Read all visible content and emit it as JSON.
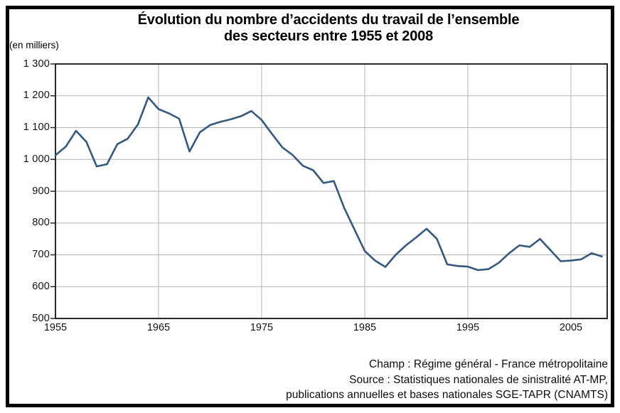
{
  "title": {
    "line1": "Évolution du nombre d’accidents du travail de l’ensemble",
    "line2": "des secteurs entre 1955 et 2008"
  },
  "y_axis": {
    "unit": "(en milliers)",
    "ticks": [
      {
        "value": 1300,
        "label": "1 300"
      },
      {
        "value": 1200,
        "label": "1 200"
      },
      {
        "value": 1100,
        "label": "1 100"
      },
      {
        "value": 1000,
        "label": "1 000"
      },
      {
        "value": 900,
        "label": "900"
      },
      {
        "value": 800,
        "label": "800"
      },
      {
        "value": 700,
        "label": "700"
      },
      {
        "value": 600,
        "label": "600"
      },
      {
        "value": 500,
        "label": "500"
      }
    ]
  },
  "x_axis": {
    "ticks": [
      {
        "value": 1955,
        "label": "1955"
      },
      {
        "value": 1965,
        "label": "1965"
      },
      {
        "value": 1975,
        "label": "1975"
      },
      {
        "value": 1985,
        "label": "1985"
      },
      {
        "value": 1995,
        "label": "1995"
      },
      {
        "value": 2005,
        "label": "2005"
      }
    ]
  },
  "footer": {
    "line1": "Champ : Régime général - France métropolitaine",
    "line2": "Source : Statistiques nationales de sinistralité AT-MP,",
    "line3": "publications annuelles et bases nationales SGE-TAPR (CNAMTS)"
  },
  "colors": {
    "line": "#34587e",
    "grid": "#b5b5b5",
    "plot_border": "#2a2a2a",
    "frame": "#050505",
    "text": "#000000"
  },
  "chart_data": {
    "type": "line",
    "title": "Évolution du nombre d’accidents du travail de l’ensemble des secteurs entre 1955 et 2008",
    "ylabel": "(en milliers)",
    "xlabel": "",
    "ylim": [
      500,
      1300
    ],
    "xlim": [
      1955,
      2008
    ],
    "yticks": [
      500,
      600,
      700,
      800,
      900,
      1000,
      1100,
      1200,
      1300
    ],
    "xticks": [
      1955,
      1965,
      1975,
      1985,
      1995,
      2005
    ],
    "grid": true,
    "legend_position": "none",
    "x": [
      1955,
      1956,
      1957,
      1958,
      1959,
      1960,
      1961,
      1962,
      1963,
      1964,
      1965,
      1966,
      1967,
      1968,
      1969,
      1970,
      1971,
      1972,
      1973,
      1974,
      1975,
      1976,
      1977,
      1978,
      1979,
      1980,
      1981,
      1982,
      1983,
      1984,
      1985,
      1986,
      1987,
      1988,
      1989,
      1990,
      1991,
      1992,
      1993,
      1994,
      1995,
      1996,
      1997,
      1998,
      1999,
      2000,
      2001,
      2002,
      2003,
      2004,
      2005,
      2006,
      2007,
      2008
    ],
    "values": [
      1013,
      1040,
      1090,
      1055,
      978,
      985,
      1048,
      1065,
      1110,
      1195,
      1158,
      1145,
      1128,
      1025,
      1085,
      1108,
      1118,
      1126,
      1136,
      1152,
      1124,
      1080,
      1038,
      1014,
      980,
      966,
      926,
      932,
      848,
      780,
      712,
      682,
      662,
      700,
      730,
      755,
      782,
      750,
      670,
      665,
      663,
      652,
      655,
      675,
      705,
      730,
      725,
      750,
      715,
      680,
      682,
      686,
      705,
      695
    ]
  }
}
